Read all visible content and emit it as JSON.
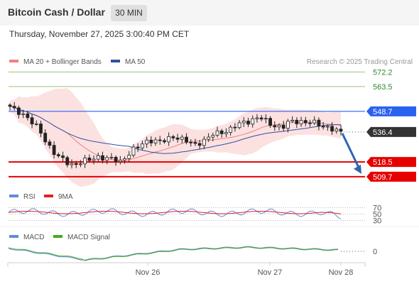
{
  "header": {
    "title": "Bitcoin Cash / Dollar",
    "timeframe": "30 MIN",
    "datetime": "Thursday, November 27, 2025 3:00:40 PM CET"
  },
  "colors": {
    "ma20": "#f08080",
    "ma50": "#3050a0",
    "resistance_line": "#9cc27a",
    "resistance_label": "#2e8b2e",
    "pivot": "#2a62f0",
    "support": "#e60000",
    "current_price_bg": "#333333",
    "rsi": "#6688dd",
    "rsi_ma": "#dd2222",
    "macd": "#6688dd",
    "macd_signal": "#44aa22",
    "arrow": "#2c66b0"
  },
  "chart_data": [
    {
      "type": "candlestick",
      "legend": [
        {
          "name": "MA 20 + Bollinger Bands",
          "color": "#f08080"
        },
        {
          "name": "MA 50",
          "color": "#3050a0"
        }
      ],
      "watermark": "Research © 2025 Trading Central",
      "ylim": [
        505,
        577
      ],
      "levels": [
        {
          "value": 572.2,
          "label": "572.2",
          "kind": "resistance"
        },
        {
          "value": 563.5,
          "label": "563.5",
          "kind": "resistance"
        },
        {
          "value": 548.7,
          "label": "548.7",
          "kind": "pivot"
        },
        {
          "value": 518.5,
          "label": "518.5",
          "kind": "support"
        },
        {
          "value": 509.7,
          "label": "509.7",
          "kind": "support"
        }
      ],
      "current_price": {
        "value": 536.4,
        "label": "536.4"
      },
      "forecast_arrow": {
        "from": 536.4,
        "to": 509.7
      },
      "x_ticks": [
        "Nov 26",
        "Nov 27",
        "Nov 28"
      ],
      "close_path": [
        551,
        549,
        548,
        545,
        541,
        538,
        532,
        527,
        522,
        520,
        518,
        517,
        518,
        519,
        520,
        522,
        521,
        520,
        520,
        519,
        522,
        525,
        527,
        530,
        532,
        531,
        530,
        532,
        534,
        533,
        531,
        530,
        529,
        531,
        532,
        535,
        536,
        537,
        538,
        540,
        542,
        543,
        544,
        545,
        543,
        541,
        540,
        539,
        542,
        543,
        543,
        542,
        542,
        541,
        540,
        539,
        537,
        536
      ]
    },
    {
      "type": "line",
      "legend": [
        {
          "name": "RSI",
          "color": "#6688dd"
        },
        {
          "name": "9MA",
          "color": "#dd2222"
        }
      ],
      "ylim": [
        20,
        80
      ],
      "y_ticks": [
        70,
        50,
        30
      ],
      "levels": [
        70,
        50,
        30
      ]
    },
    {
      "type": "line",
      "legend": [
        {
          "name": "MACD",
          "color": "#6688dd"
        },
        {
          "name": "MACD Signal",
          "color": "#44aa22"
        }
      ],
      "y_ticks": [
        0
      ],
      "zero_line": 0
    }
  ]
}
